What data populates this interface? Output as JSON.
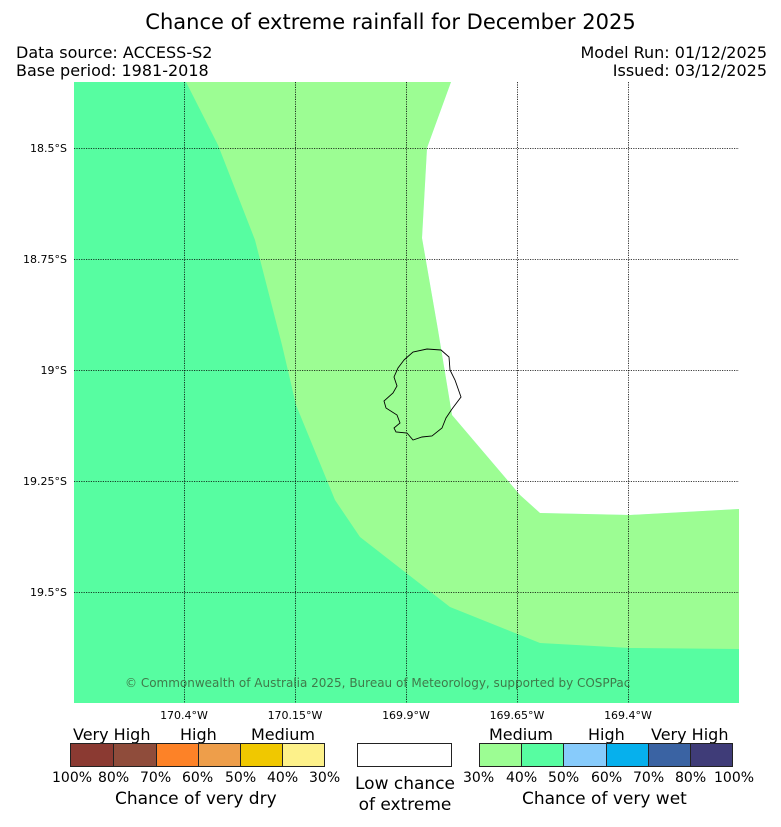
{
  "title": "Chance of extreme rainfall for December 2025",
  "info": {
    "data_source": "Data source: ACCESS-S2",
    "base_period": "Base period: 1981-2018",
    "model_run": "Model Run: 01/12/2025",
    "issued": "Issued: 03/12/2025"
  },
  "map": {
    "lat_labels": [
      "18.5°S",
      "18.75°S",
      "19°S",
      "19.25°S",
      "19.5°S"
    ],
    "lon_labels": [
      "170.4°W",
      "170.15°W",
      "169.9°W",
      "169.65°W",
      "169.4°W"
    ],
    "copyright": "© Commonwealth of Australia 2025, Bureau of Meteorology, supported by COSPPac",
    "colors": {
      "wet_40_50": "#57fda1",
      "wet_30_40": "#9cfd93",
      "low_chance": "#ffffff"
    }
  },
  "legend": {
    "dry": {
      "headers": [
        "Very High",
        "High",
        "Medium"
      ],
      "percents": [
        "100%",
        "80%",
        "70%",
        "60%",
        "50%",
        "40%",
        "30%"
      ],
      "colors": [
        "#8b3a32",
        "#8f4c3b",
        "#fd8227",
        "#ee9e4a",
        "#f0c800",
        "#fdf18a"
      ],
      "caption": "Chance of very dry"
    },
    "low": {
      "caption_line1": "Low chance",
      "caption_line2": "of extreme",
      "color": "#ffffff"
    },
    "wet": {
      "headers": [
        "Medium",
        "High",
        "Very High"
      ],
      "percents": [
        "30%",
        "40%",
        "50%",
        "60%",
        "70%",
        "80%",
        "100%"
      ],
      "colors": [
        "#9cfd93",
        "#57fda1",
        "#87cbfb",
        "#06b0ed",
        "#3a63a3",
        "#3f3c78"
      ],
      "caption": "Chance of very wet"
    }
  }
}
